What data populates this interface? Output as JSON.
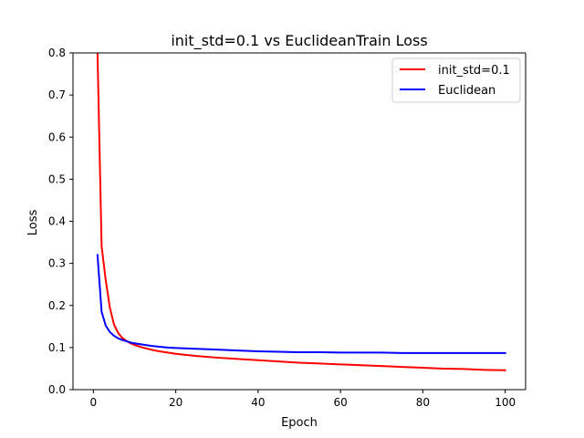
{
  "chart_data": {
    "type": "line",
    "title": "init_std=0.1 vs EuclideanTrain Loss",
    "xlabel": "Epoch",
    "ylabel": "Loss",
    "xlim": [
      -4.95,
      104.95
    ],
    "ylim": [
      0.0,
      0.8
    ],
    "xticks": [
      0,
      20,
      40,
      60,
      80,
      100
    ],
    "xtick_labels": [
      "0",
      "20",
      "40",
      "60",
      "80",
      "100"
    ],
    "yticks": [
      0.0,
      0.1,
      0.2,
      0.3,
      0.4,
      0.5,
      0.6,
      0.7,
      0.8
    ],
    "ytick_labels": [
      "0.0",
      "0.1",
      "0.2",
      "0.3",
      "0.4",
      "0.5",
      "0.6",
      "0.7",
      "0.8"
    ],
    "grid": false,
    "legend_position": "top-right",
    "series": [
      {
        "name": "init_std=0.1",
        "color": "#ff0000",
        "x": [
          1,
          2,
          3,
          4,
          5,
          6,
          7,
          8,
          9,
          10,
          12,
          14,
          16,
          18,
          20,
          25,
          30,
          35,
          40,
          45,
          50,
          55,
          60,
          65,
          70,
          75,
          80,
          85,
          90,
          95,
          100
        ],
        "y": [
          0.8,
          0.34,
          0.26,
          0.195,
          0.155,
          0.135,
          0.123,
          0.116,
          0.11,
          0.106,
          0.1,
          0.095,
          0.091,
          0.088,
          0.085,
          0.08,
          0.076,
          0.073,
          0.07,
          0.067,
          0.064,
          0.062,
          0.06,
          0.058,
          0.056,
          0.054,
          0.052,
          0.05,
          0.049,
          0.047,
          0.046
        ]
      },
      {
        "name": "Euclidean",
        "color": "#0000ff",
        "x": [
          1,
          2,
          3,
          4,
          5,
          6,
          7,
          8,
          9,
          10,
          12,
          14,
          16,
          18,
          20,
          25,
          30,
          35,
          40,
          45,
          50,
          55,
          60,
          65,
          70,
          75,
          80,
          85,
          90,
          95,
          100
        ],
        "y": [
          0.32,
          0.185,
          0.152,
          0.137,
          0.128,
          0.122,
          0.118,
          0.115,
          0.112,
          0.11,
          0.107,
          0.104,
          0.102,
          0.1,
          0.099,
          0.097,
          0.095,
          0.093,
          0.091,
          0.09,
          0.089,
          0.089,
          0.088,
          0.088,
          0.088,
          0.087,
          0.087,
          0.087,
          0.087,
          0.087,
          0.087
        ]
      }
    ]
  }
}
